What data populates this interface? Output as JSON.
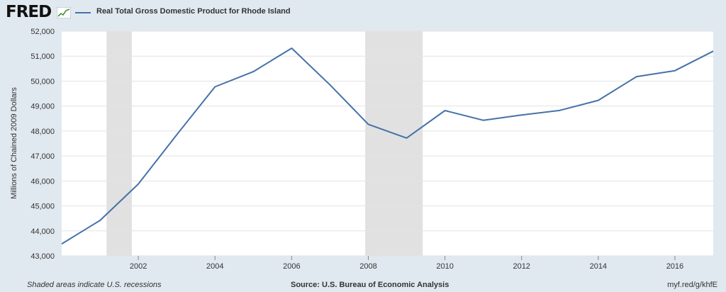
{
  "header": {
    "logo_text": "FRED",
    "logo_icon": "trend-chart-icon"
  },
  "chart_data": {
    "type": "line",
    "title": "",
    "xlabel": "",
    "ylabel": "Millions of Chained 2009 Dollars",
    "xlim": [
      2000,
      2017
    ],
    "ylim": [
      43000,
      52000
    ],
    "yticks": [
      43000,
      44000,
      45000,
      46000,
      47000,
      48000,
      49000,
      50000,
      51000,
      52000
    ],
    "ytick_labels": [
      "43,000",
      "44,000",
      "45,000",
      "46,000",
      "47,000",
      "48,000",
      "49,000",
      "50,000",
      "51,000",
      "52,000"
    ],
    "xticks": [
      2002,
      2004,
      2006,
      2008,
      2010,
      2012,
      2014,
      2016
    ],
    "xtick_labels": [
      "2002",
      "2004",
      "2006",
      "2008",
      "2010",
      "2012",
      "2014",
      "2016"
    ],
    "grid": true,
    "legend_position": "top-left",
    "series": [
      {
        "name": "Real Total Gross Domestic Product for Rhode Island",
        "color": "#4572a7",
        "x": [
          2000,
          2001,
          2002,
          2003,
          2004,
          2005,
          2006,
          2007,
          2008,
          2009,
          2010,
          2011,
          2012,
          2013,
          2014,
          2015,
          2016,
          2017
        ],
        "values": [
          43480,
          44420,
          45880,
          47850,
          49770,
          50380,
          51320,
          49850,
          48270,
          47720,
          48820,
          48430,
          48640,
          48830,
          49230,
          50180,
          50420,
          51200
        ]
      }
    ],
    "recessions": [
      {
        "start": 2001.17,
        "end": 2001.83
      },
      {
        "start": 2007.92,
        "end": 2009.42
      }
    ]
  },
  "footer": {
    "note": "Shaded areas indicate U.S. recessions",
    "source": "Source: U.S. Bureau of Economic Analysis",
    "link": "myf.red/g/khfE"
  }
}
